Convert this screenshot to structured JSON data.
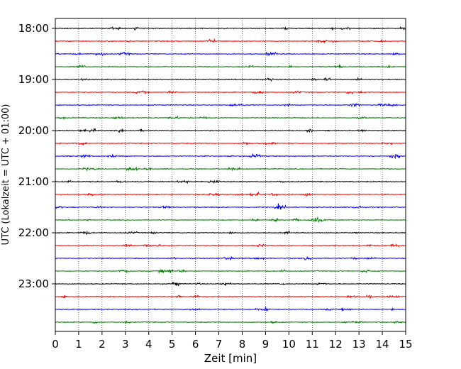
{
  "chart_data": {
    "type": "line",
    "chart_kind": "helicorder",
    "title": "",
    "xlabel": "Zeit  [min]",
    "ylabel": "UTC (Lokalzeit = UTC + 01:00)",
    "xlim": [
      0,
      15
    ],
    "x_ticks": [
      "0",
      "1",
      "2",
      "3",
      "4",
      "5",
      "6",
      "7",
      "8",
      "9",
      "10",
      "11",
      "12",
      "13",
      "14",
      "15"
    ],
    "y_ticks": [
      "18:00",
      "19:00",
      "20:00",
      "21:00",
      "22:00",
      "23:00"
    ],
    "grid": "vertical-dotted",
    "trace_interval_minutes": 15,
    "start_time": "18:00",
    "trace_count": 24,
    "trace_colors": [
      "#000000",
      "#ff0000",
      "#0000ff",
      "#008000"
    ],
    "series": [
      {
        "start": "18:00",
        "color": "#000000"
      },
      {
        "start": "18:15",
        "color": "#ff0000"
      },
      {
        "start": "18:30",
        "color": "#0000ff"
      },
      {
        "start": "18:45",
        "color": "#008000"
      },
      {
        "start": "19:00",
        "color": "#000000"
      },
      {
        "start": "19:15",
        "color": "#ff0000"
      },
      {
        "start": "19:30",
        "color": "#0000ff"
      },
      {
        "start": "19:45",
        "color": "#008000"
      },
      {
        "start": "20:00",
        "color": "#000000"
      },
      {
        "start": "20:15",
        "color": "#ff0000"
      },
      {
        "start": "20:30",
        "color": "#0000ff"
      },
      {
        "start": "20:45",
        "color": "#008000"
      },
      {
        "start": "21:00",
        "color": "#000000"
      },
      {
        "start": "21:15",
        "color": "#ff0000"
      },
      {
        "start": "21:30",
        "color": "#0000ff"
      },
      {
        "start": "21:45",
        "color": "#008000"
      },
      {
        "start": "22:00",
        "color": "#000000"
      },
      {
        "start": "22:15",
        "color": "#ff0000"
      },
      {
        "start": "22:30",
        "color": "#0000ff"
      },
      {
        "start": "22:45",
        "color": "#008000"
      },
      {
        "start": "23:00",
        "color": "#000000"
      },
      {
        "start": "23:15",
        "color": "#ff0000"
      },
      {
        "start": "23:30",
        "color": "#0000ff"
      },
      {
        "start": "23:45",
        "color": "#008000"
      }
    ]
  }
}
